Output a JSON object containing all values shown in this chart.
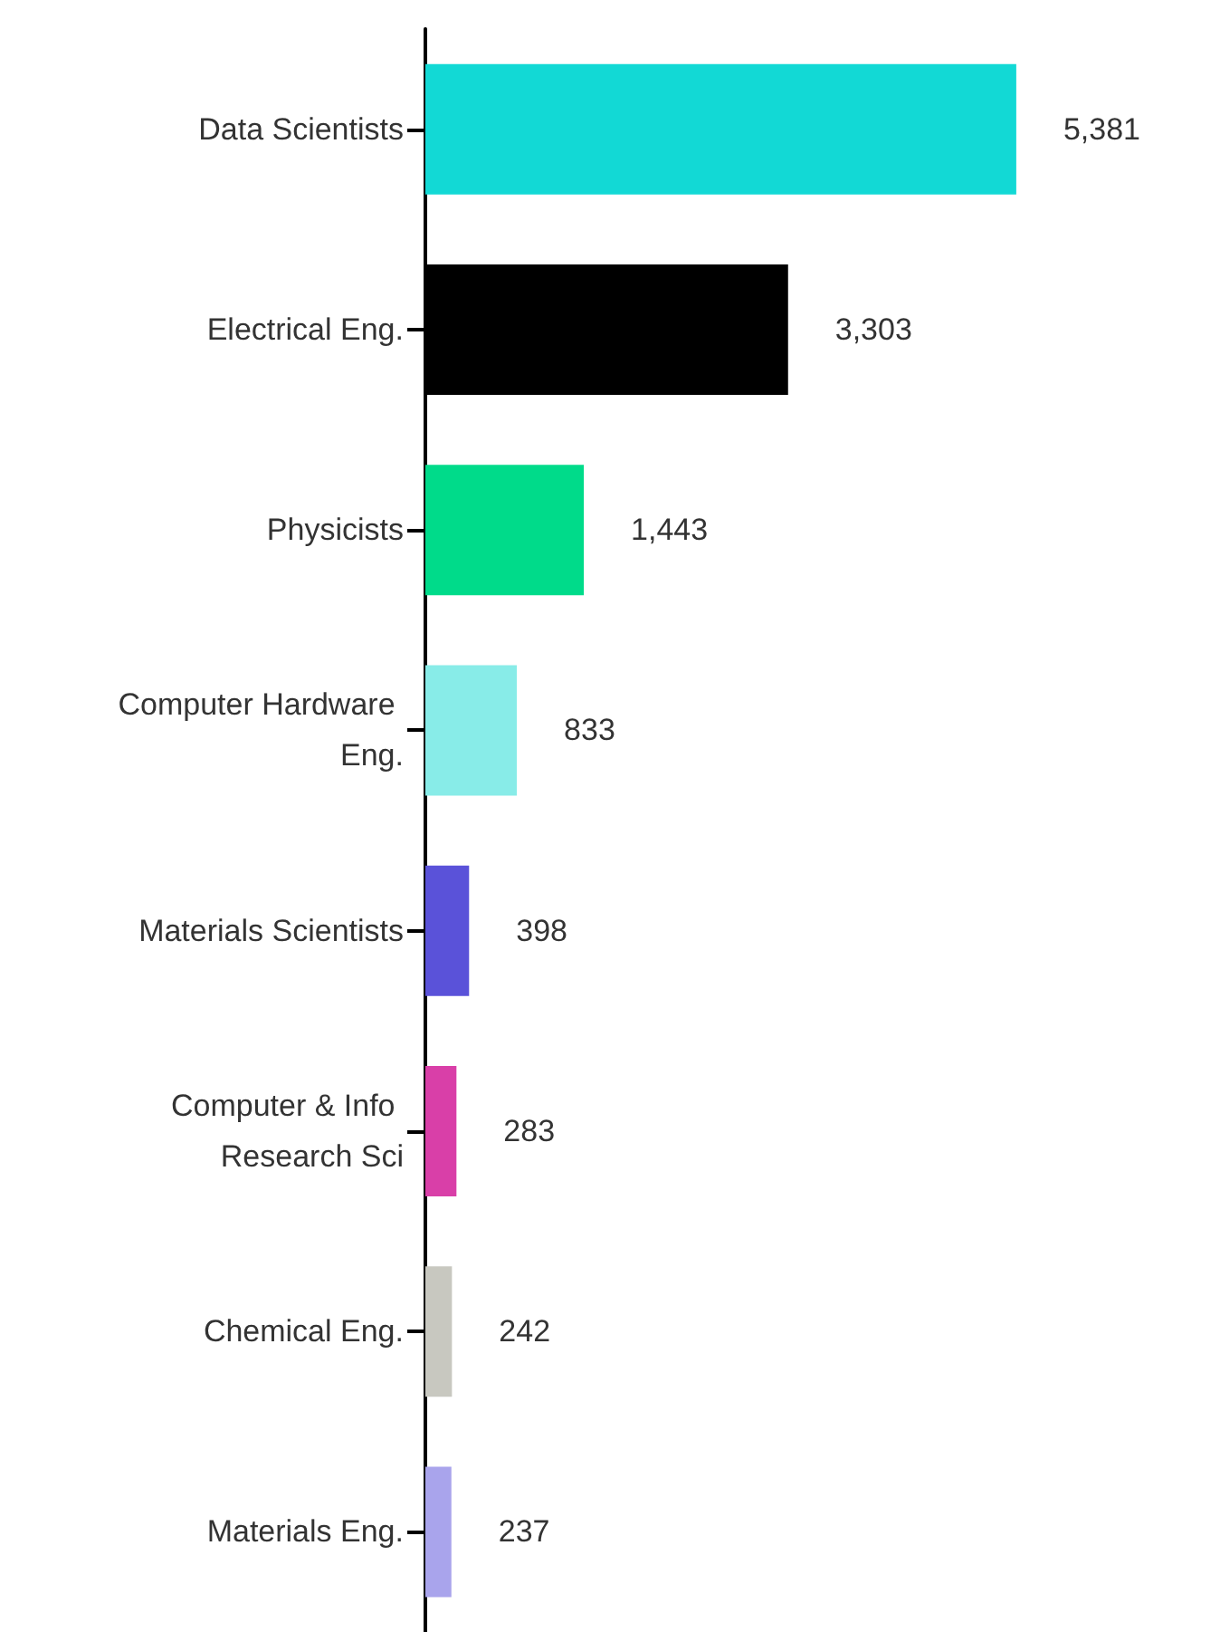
{
  "chart_data": {
    "type": "bar",
    "orientation": "horizontal",
    "categories": [
      "Data Scientists",
      "Electrical Eng.",
      "Physicists",
      "Computer Hardware Eng.",
      "Materials Scientists",
      "Computer & Info Research Sci",
      "Chemical Eng.",
      "Materials Eng."
    ],
    "values": [
      5381,
      3303,
      1443,
      833,
      398,
      283,
      242,
      237
    ],
    "value_labels": [
      "5,381",
      "3,303",
      "1,443",
      "833",
      "398",
      "283",
      "242",
      "237"
    ],
    "colors": [
      "#12d9d5",
      "#000000",
      "#00db8a",
      "#88ece8",
      "#5a52d9",
      "#d93fa8",
      "#c8c8c0",
      "#a9a4ec"
    ],
    "grid": false
  }
}
